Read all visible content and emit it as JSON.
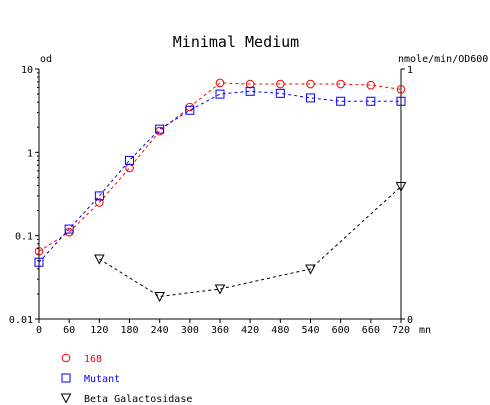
{
  "chart_data": {
    "type": "line",
    "title": "Minimal Medium",
    "left_axis": {
      "label": "od",
      "scale": "log",
      "range": [
        0.01,
        10
      ],
      "ticks": [
        {
          "v": 10,
          "t": "10"
        },
        {
          "v": 1,
          "t": "1"
        },
        {
          "v": 0.1,
          "t": "0.1"
        },
        {
          "v": 0.01,
          "t": "0.01"
        }
      ]
    },
    "right_axis": {
      "label": "nmole/min/OD600",
      "scale": "linear",
      "range": [
        0,
        1
      ],
      "ticks": [
        {
          "v": 1,
          "t": "1"
        },
        {
          "v": 0,
          "t": "0"
        }
      ]
    },
    "x_axis": {
      "unit": "mn",
      "range": [
        0,
        720
      ],
      "ticks": [
        0,
        60,
        120,
        180,
        240,
        300,
        360,
        420,
        480,
        540,
        600,
        660,
        720
      ]
    },
    "series": [
      {
        "name": "168",
        "axis": "left",
        "color": "#ff0000",
        "marker": "circle",
        "x": [
          0,
          60,
          120,
          180,
          240,
          300,
          360,
          420,
          480,
          540,
          600,
          660,
          720
        ],
        "values": [
          0.065,
          0.11,
          0.25,
          0.65,
          1.8,
          3.5,
          6.8,
          6.6,
          6.6,
          6.6,
          6.6,
          6.4,
          5.7
        ]
      },
      {
        "name": "Mutant",
        "axis": "left",
        "color": "#0000ff",
        "marker": "square",
        "x": [
          0,
          60,
          120,
          180,
          240,
          300,
          360,
          420,
          480,
          540,
          600,
          660,
          720
        ],
        "values": [
          0.048,
          0.12,
          0.3,
          0.8,
          1.9,
          3.2,
          5.0,
          5.4,
          5.1,
          4.5,
          4.1,
          4.1,
          4.1
        ]
      },
      {
        "name": "Beta Galactosidase",
        "axis": "right",
        "color": "#000000",
        "marker": "triangle-down",
        "x": [
          120,
          240,
          360,
          540,
          720
        ],
        "values": [
          0.24,
          0.09,
          0.12,
          0.2,
          0.53
        ]
      }
    ]
  }
}
